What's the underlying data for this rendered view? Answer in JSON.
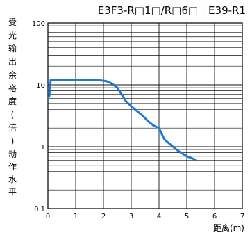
{
  "chart_data": {
    "type": "line",
    "title": "E3F3-R□1□/R□6□＋E39-R1",
    "xlabel": "距离(m)",
    "ylabel_top": "受光输出余裕度(倍)",
    "ylabel_bottom": "动作水平",
    "xlim": [
      0,
      7
    ],
    "ylim": [
      0.1,
      100
    ],
    "yscale": "log",
    "grid": true,
    "x_ticks": [
      "0",
      "1",
      "2",
      "3",
      "4",
      "5",
      "6",
      "7"
    ],
    "y_ticks": [
      "0.1",
      "1",
      "10",
      "100"
    ],
    "line_color": "#1f77d4",
    "series": [
      {
        "x": [
          0.0,
          0.05,
          0.1,
          0.2,
          0.4,
          1.0,
          1.6,
          1.9,
          2.1,
          2.3,
          2.5,
          2.7,
          2.8,
          3.0,
          3.2,
          3.4,
          3.6,
          3.8,
          4.0,
          4.1,
          4.2,
          4.3,
          4.5,
          4.7,
          5.0,
          5.3
        ],
        "y": [
          6.0,
          6.6,
          12.0,
          12.0,
          12.0,
          12.0,
          12.0,
          11.8,
          11.5,
          10.5,
          9.0,
          6.5,
          5.5,
          4.5,
          3.8,
          3.2,
          2.6,
          2.2,
          2.0,
          1.6,
          1.3,
          1.2,
          1.0,
          0.85,
          0.7,
          0.62
        ]
      }
    ]
  }
}
